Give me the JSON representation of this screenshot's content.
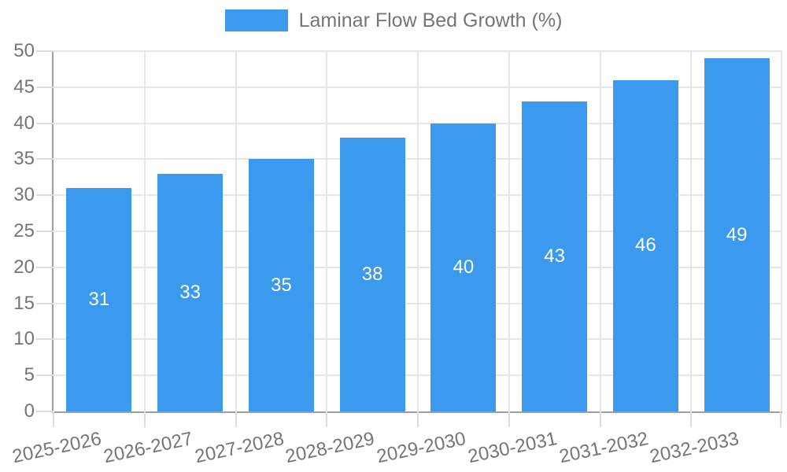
{
  "chart_data": {
    "type": "bar",
    "title": "",
    "xlabel": "",
    "ylabel": "",
    "categories": [
      "2025-2026",
      "2026-2027",
      "2027-2028",
      "2028-2029",
      "2029-2030",
      "2030-2031",
      "2031-2032",
      "2032-2033"
    ],
    "series": [
      {
        "name": "Laminar Flow Bed Growth (%)",
        "values": [
          31,
          33,
          35,
          38,
          40,
          43,
          46,
          49
        ]
      }
    ],
    "value_labels": [
      "31",
      "33",
      "35",
      "38",
      "40",
      "43",
      "46",
      "49"
    ],
    "ylim": [
      0,
      50
    ],
    "ytick_step": 5,
    "yticks": [
      0,
      5,
      10,
      15,
      20,
      25,
      30,
      35,
      40,
      45,
      50
    ],
    "grid": "on",
    "legend_position": "top",
    "x_tick_rotation_deg": -12,
    "colors": {
      "bar": "#3B99EE",
      "value_label": "#FFFFFF",
      "axis": "#9E9E9E",
      "grid": "#E6E6E6",
      "tick": "#DCDCDC",
      "text": "#757575"
    }
  }
}
